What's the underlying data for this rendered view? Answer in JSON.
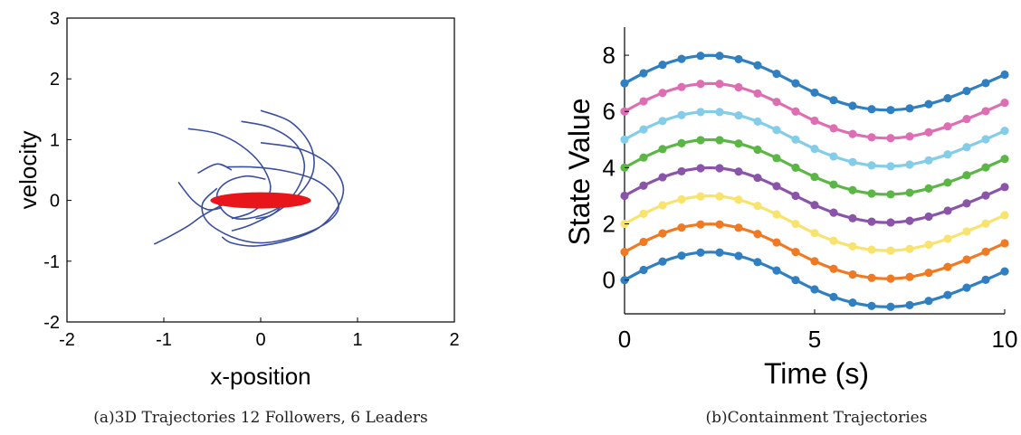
{
  "chart_data": [
    {
      "type": "line",
      "panel_caption": "(a)3D Trajectories 12 Followers, 6 Leaders",
      "xlabel": "x-position",
      "ylabel": "velocity",
      "xlim": [
        -2,
        2
      ],
      "ylim": [
        -2,
        3
      ],
      "xticks": [
        -2,
        -1,
        0,
        1,
        2
      ],
      "yticks": [
        -2,
        -1,
        0,
        1,
        2,
        3
      ],
      "grid": false,
      "colors": {
        "followers": "#3a4fa0",
        "leaders": "#e8161b"
      },
      "leader_region": {
        "x": [
          -0.52,
          0.52
        ],
        "y": [
          -0.04,
          0.04
        ]
      },
      "series": [
        {
          "x": [
            -1.1,
            -0.95,
            -0.75,
            -0.6,
            -0.4,
            -0.2,
            0.0,
            0.15,
            0.2,
            0.1,
            -0.05
          ],
          "y": [
            -0.72,
            -0.6,
            -0.42,
            -0.25,
            -0.08,
            0.05,
            0.12,
            0.05,
            -0.1,
            -0.25,
            -0.3
          ]
        },
        {
          "x": [
            -0.75,
            -0.45,
            -0.2,
            0.0,
            0.1,
            0.05,
            -0.1,
            -0.3
          ],
          "y": [
            1.18,
            1.1,
            0.9,
            0.6,
            0.25,
            0.0,
            -0.2,
            -0.3
          ]
        },
        {
          "x": [
            -0.2,
            0.1,
            0.35,
            0.45,
            0.4,
            0.25,
            0.0,
            -0.25,
            -0.4,
            -0.45,
            -0.35,
            -0.15,
            0.05
          ],
          "y": [
            1.3,
            1.2,
            0.95,
            0.6,
            0.25,
            -0.05,
            -0.25,
            -0.3,
            -0.15,
            0.1,
            0.3,
            0.4,
            0.35
          ]
        },
        {
          "x": [
            0.0,
            0.3,
            0.5,
            0.55,
            0.45,
            0.2,
            -0.1,
            -0.3
          ],
          "y": [
            1.48,
            1.3,
            0.95,
            0.55,
            0.2,
            -0.15,
            -0.4,
            -0.5
          ]
        },
        {
          "x": [
            0.0,
            0.4,
            0.7,
            0.85,
            0.8,
            0.6,
            0.3,
            -0.05,
            -0.3,
            -0.4
          ],
          "y": [
            0.95,
            0.85,
            0.6,
            0.25,
            -0.1,
            -0.45,
            -0.65,
            -0.75,
            -0.7,
            -0.6
          ]
        },
        {
          "x": [
            -0.35,
            -0.1,
            0.2,
            0.55,
            0.75,
            0.8,
            0.65,
            0.35,
            0.0,
            -0.3,
            -0.55,
            -0.6,
            -0.45
          ],
          "y": [
            0.55,
            0.55,
            0.5,
            0.35,
            0.1,
            -0.15,
            -0.4,
            -0.6,
            -0.7,
            -0.6,
            -0.35,
            -0.05,
            0.2
          ]
        },
        {
          "x": [
            -0.85,
            -0.7,
            -0.55,
            -0.4
          ],
          "y": [
            0.3,
            0.0,
            -0.15,
            -0.12
          ]
        },
        {
          "x": [
            -0.65,
            -0.45,
            -0.3
          ],
          "y": [
            0.45,
            0.6,
            0.5
          ]
        }
      ]
    },
    {
      "type": "line",
      "panel_caption": "(b)Containment Trajectories",
      "xlabel": "Time (s)",
      "ylabel": "State Value",
      "xlim": [
        0,
        10
      ],
      "ylim": [
        -1.2,
        9
      ],
      "xticks": [
        0,
        5,
        10
      ],
      "yticks": [
        0,
        2,
        4,
        6,
        8
      ],
      "grid": false,
      "x": [
        0,
        0.5,
        1,
        1.5,
        2,
        2.5,
        3,
        3.5,
        4,
        4.5,
        5,
        5.5,
        6,
        6.5,
        7,
        7.5,
        8,
        8.5,
        9,
        9.5,
        10
      ],
      "series": [
        {
          "color": "#2f7fc1",
          "values": [
            0.0,
            0.36,
            0.66,
            0.87,
            0.98,
            0.98,
            0.86,
            0.64,
            0.34,
            0.0,
            -0.33,
            -0.6,
            -0.8,
            -0.92,
            -0.95,
            -0.89,
            -0.74,
            -0.53,
            -0.27,
            0.01,
            0.31
          ]
        },
        {
          "color": "#f07a24",
          "values": [
            1.0,
            1.36,
            1.66,
            1.87,
            1.98,
            1.98,
            1.86,
            1.64,
            1.34,
            1.0,
            0.67,
            0.4,
            0.2,
            0.08,
            0.05,
            0.11,
            0.26,
            0.47,
            0.73,
            1.01,
            1.31
          ]
        },
        {
          "color": "#f7e36e",
          "values": [
            2.0,
            2.36,
            2.66,
            2.87,
            2.98,
            2.98,
            2.86,
            2.64,
            2.34,
            2.0,
            1.67,
            1.4,
            1.2,
            1.08,
            1.05,
            1.11,
            1.26,
            1.47,
            1.73,
            2.01,
            2.31
          ]
        },
        {
          "color": "#8a55a8",
          "values": [
            3.0,
            3.36,
            3.66,
            3.87,
            3.98,
            3.98,
            3.86,
            3.64,
            3.34,
            3.0,
            2.67,
            2.4,
            2.2,
            2.08,
            2.05,
            2.11,
            2.26,
            2.47,
            2.73,
            3.01,
            3.31
          ]
        },
        {
          "color": "#5cb646",
          "values": [
            4.0,
            4.36,
            4.66,
            4.87,
            4.98,
            4.98,
            4.86,
            4.64,
            4.34,
            4.0,
            3.67,
            3.4,
            3.2,
            3.08,
            3.05,
            3.11,
            3.26,
            3.47,
            3.73,
            4.01,
            4.31
          ]
        },
        {
          "color": "#84cde8",
          "values": [
            5.0,
            5.36,
            5.66,
            5.87,
            5.98,
            5.98,
            5.86,
            5.64,
            5.34,
            5.0,
            4.67,
            4.4,
            4.2,
            4.08,
            4.05,
            4.11,
            4.26,
            4.47,
            4.73,
            5.01,
            5.31
          ]
        },
        {
          "color": "#de6eb3",
          "values": [
            6.0,
            6.36,
            6.66,
            6.87,
            6.98,
            6.98,
            6.86,
            6.64,
            6.34,
            6.0,
            5.67,
            5.4,
            5.2,
            5.08,
            5.05,
            5.11,
            5.26,
            5.47,
            5.73,
            6.01,
            6.31
          ]
        },
        {
          "color": "#2f7fc1",
          "values": [
            7.0,
            7.36,
            7.66,
            7.87,
            7.98,
            7.98,
            7.86,
            7.64,
            7.34,
            7.0,
            6.67,
            6.4,
            6.2,
            6.08,
            6.05,
            6.11,
            6.26,
            6.47,
            6.73,
            7.01,
            7.31
          ]
        }
      ]
    }
  ]
}
